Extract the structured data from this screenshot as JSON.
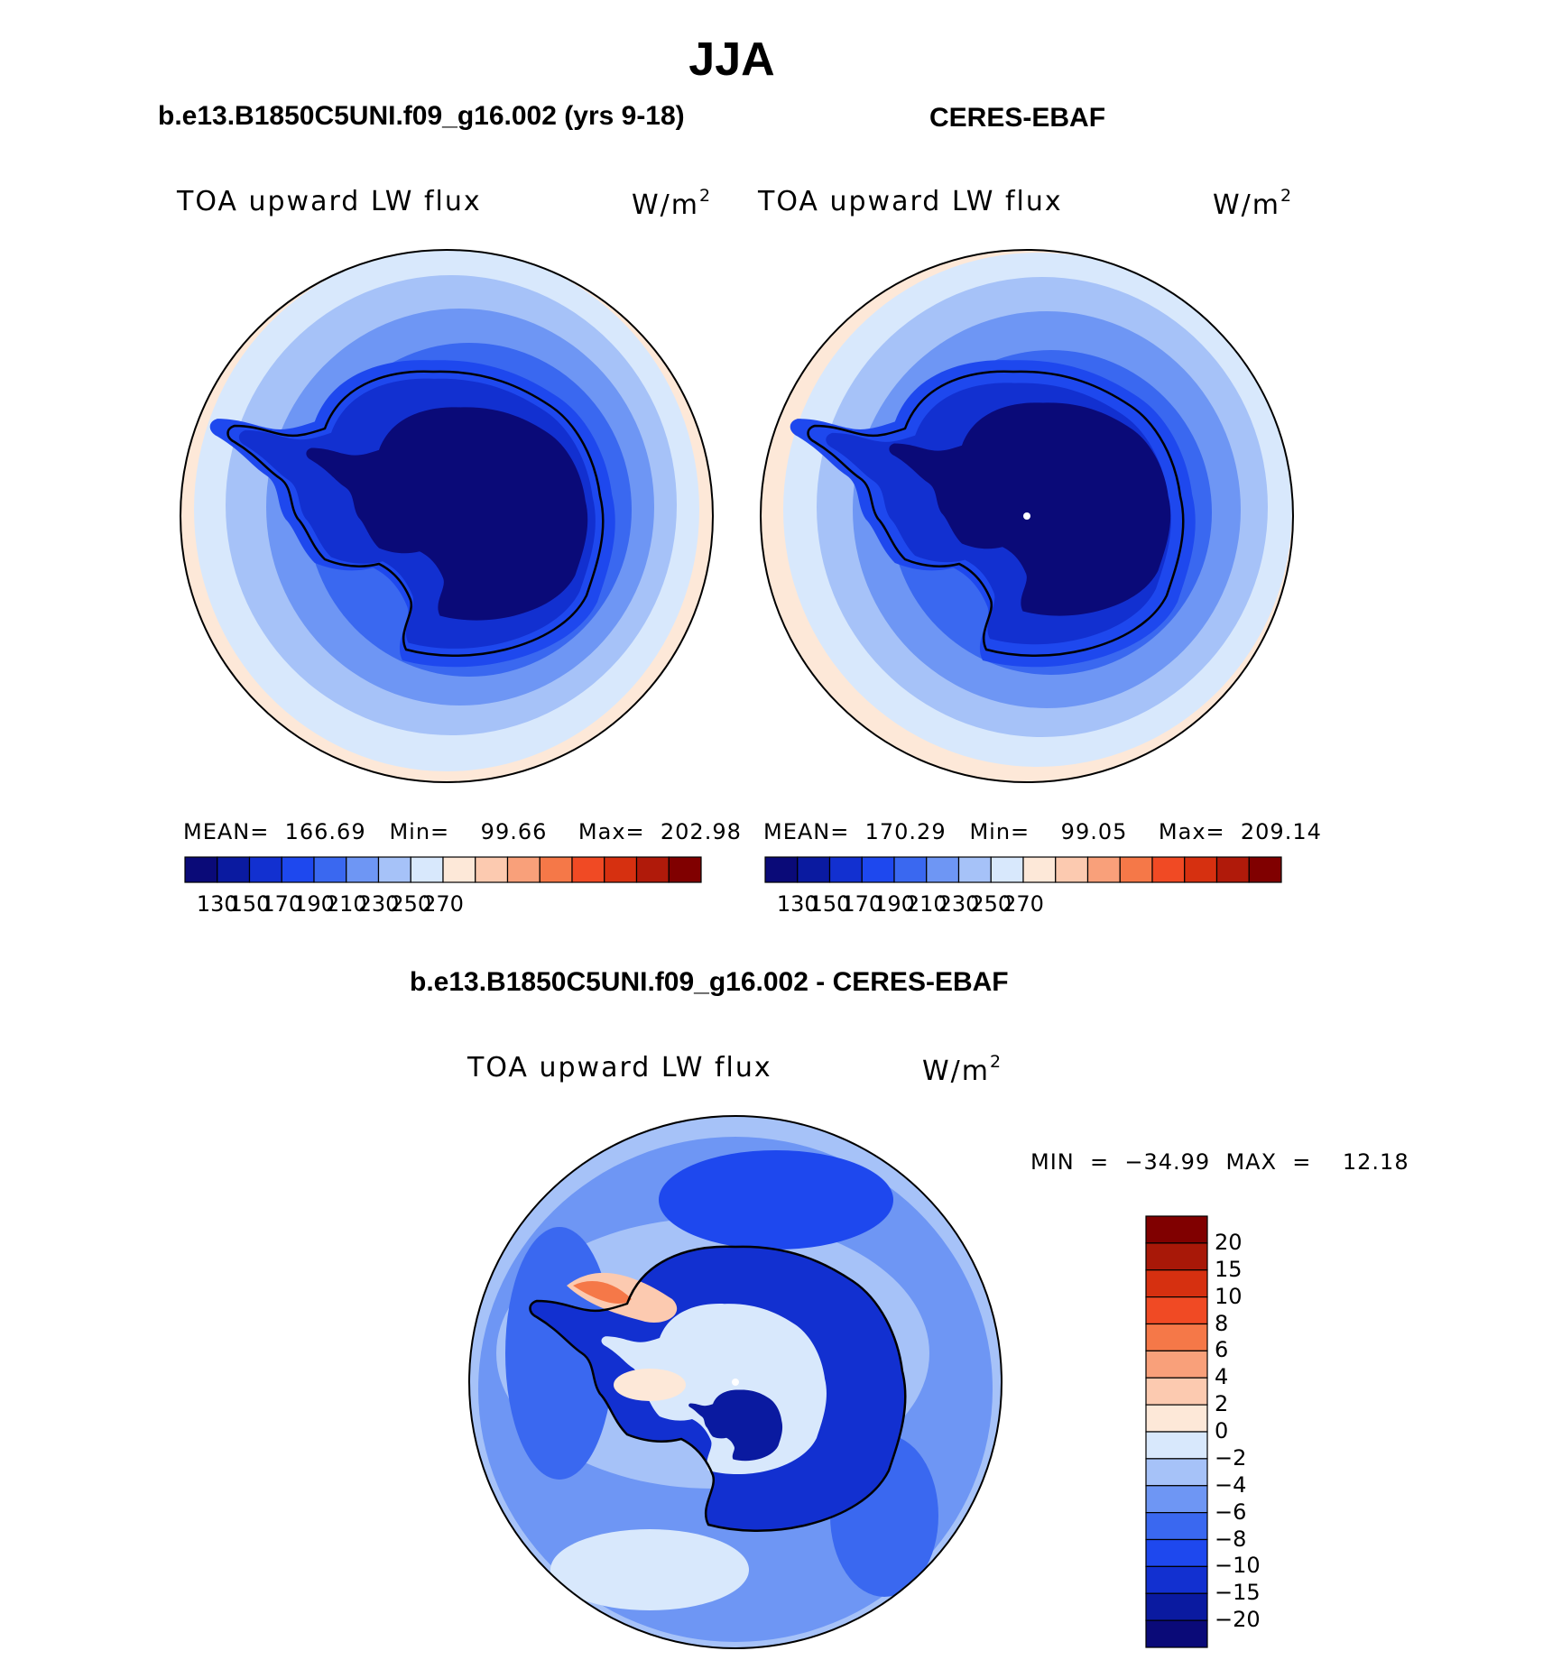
{
  "figure": {
    "title": "JJA",
    "left_title": "b.e13.B1850C5UNI.f09_g16.002 (yrs 9-18)",
    "right_title": "CERES-EBAF",
    "diff_title": "b.e13.B1850C5UNI.f09_g16.002 - CERES-EBAF"
  },
  "panels": [
    {
      "id": "model",
      "label": "TOA upward LW flux",
      "units_base": "W/m",
      "units_exp": "2",
      "stats": "MEAN=  166.69   Min=    99.66    Max=  202.98",
      "mean": 166.69,
      "min": 99.66,
      "max": 202.98
    },
    {
      "id": "obs",
      "label": "TOA upward LW flux",
      "units_base": "W/m",
      "units_exp": "2",
      "stats": "MEAN=  170.29   Min=    99.05    Max=  209.14",
      "mean": 170.29,
      "min": 99.05,
      "max": 209.14
    },
    {
      "id": "diff",
      "label": "TOA upward LW flux",
      "units_base": "W/m",
      "units_exp": "2",
      "stats": "MIN  =  −34.99  MAX  =    12.18",
      "min": -34.99,
      "max": 12.18
    }
  ],
  "colorbar_abs": {
    "colors": [
      "#0a0a78",
      "#0a1aa0",
      "#1230d0",
      "#1e48ee",
      "#3a68f0",
      "#6e96f4",
      "#a6c2f8",
      "#d8e8fc",
      "#fde8d8",
      "#fccab0",
      "#f9a07a",
      "#f57848",
      "#f04a24",
      "#d63010",
      "#b01a0a",
      "#800000"
    ],
    "labels": [
      "130",
      "150",
      "170",
      "190",
      "210",
      "230",
      "250",
      "270"
    ]
  },
  "colorbar_diff": {
    "colors": [
      "#800000",
      "#a81808",
      "#d63010",
      "#f04a24",
      "#f57848",
      "#f9a07a",
      "#fccab0",
      "#fde8d8",
      "#d8e8fc",
      "#a6c2f8",
      "#6e96f4",
      "#3a68f0",
      "#1e48ee",
      "#1230d0",
      "#0a1aa0",
      "#0a0a78"
    ],
    "labels": [
      "20",
      "15",
      "10",
      "8",
      "6",
      "4",
      "2",
      "0",
      "−2",
      "−4",
      "−6",
      "−8",
      "−10",
      "−15",
      "−20"
    ]
  }
}
